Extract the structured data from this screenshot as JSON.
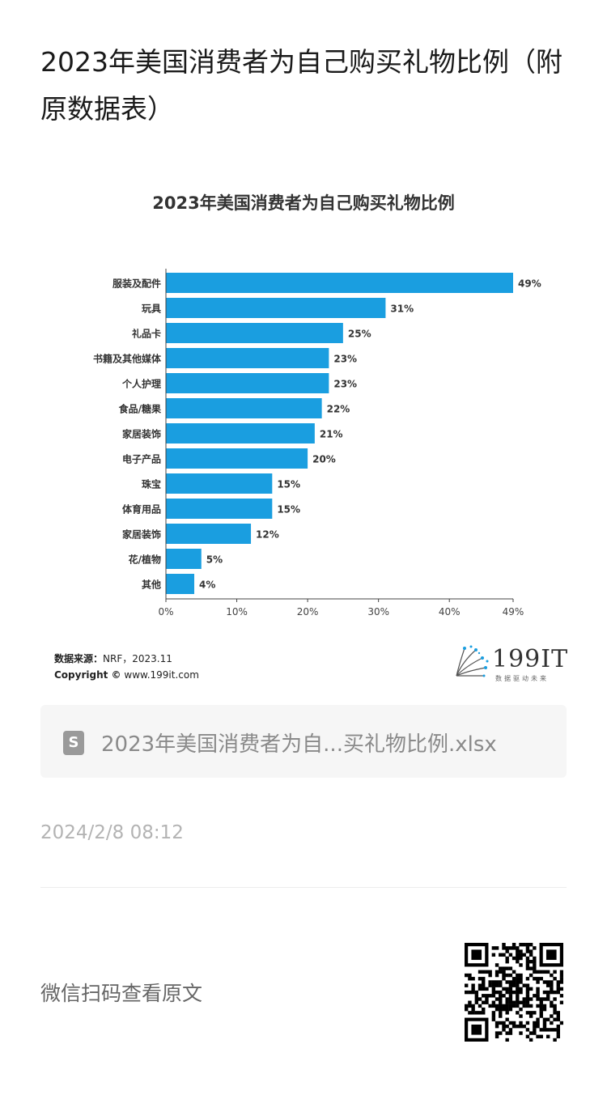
{
  "article": {
    "title": "2023年美国消费者为自己购买礼物比例（附原数据表）"
  },
  "chart_data": {
    "type": "bar",
    "orientation": "horizontal",
    "title": "2023年美国消费者为自己购买礼物比例",
    "categories": [
      "服装及配件",
      "玩具",
      "礼品卡",
      "书籍及其他媒体",
      "个人护理",
      "食品/糖果",
      "家居装饰",
      "电子产品",
      "珠宝",
      "体育用品",
      "家居装饰",
      "花/植物",
      "其他"
    ],
    "values": [
      49,
      31,
      25,
      23,
      23,
      22,
      21,
      20,
      15,
      15,
      12,
      5,
      4
    ],
    "value_labels": [
      "49%",
      "31%",
      "25%",
      "23%",
      "23%",
      "22%",
      "21%",
      "20%",
      "15%",
      "15%",
      "12%",
      "5%",
      "4%"
    ],
    "x_ticks": [
      0,
      10,
      20,
      30,
      40,
      49
    ],
    "x_tick_labels": [
      "0%",
      "10%",
      "20%",
      "30%",
      "40%",
      "49%"
    ],
    "xlim": [
      0,
      49
    ],
    "bar_color": "#1a9ee0",
    "grid": false
  },
  "source": {
    "label": "数据来源：",
    "value": "NRF，2023.11",
    "copyright_label": "Copyright ©",
    "copyright_value": "www.199it.com"
  },
  "brand": {
    "name": "199IT",
    "slogan": "数据驱动未来",
    "icon": "dandelion-logo-icon"
  },
  "file": {
    "icon": "spreadsheet-file-icon",
    "icon_glyph": "S",
    "name": "2023年美国消费者为自...买礼物比例.xlsx"
  },
  "meta": {
    "timestamp": "2024/2/8 08:12",
    "scan_text": "微信扫码查看原文"
  }
}
